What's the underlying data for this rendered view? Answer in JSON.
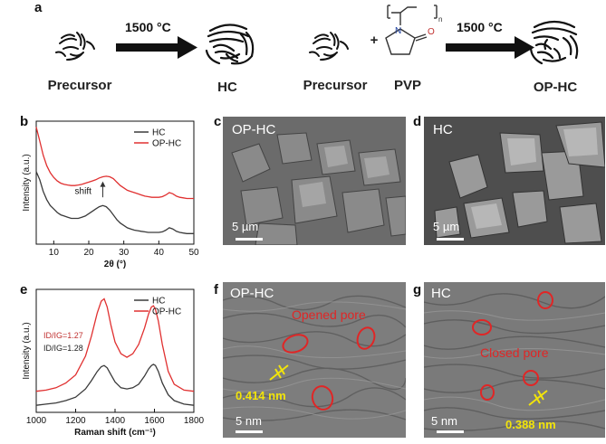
{
  "panels": {
    "a": "a",
    "b": "b",
    "c": "c",
    "d": "d",
    "e": "e",
    "f": "f",
    "g": "g"
  },
  "scheme": {
    "temp_left": "1500 °C",
    "temp_right": "1500 °C",
    "precursor_left": "Precursor",
    "hc": "HC",
    "precursor_right": "Precursor",
    "plus": "+",
    "pvp": "PVP",
    "ophc": "OP-HC",
    "pvp_n": "N",
    "pvp_o": "O",
    "pvp_sub": "n"
  },
  "sem": {
    "c_label": "OP-HC",
    "d_label": "HC",
    "c_scale": "5 µm",
    "d_scale": "5 µm"
  },
  "tem": {
    "f_label": "OP-HC",
    "g_label": "HC",
    "f_annot": "Opened pore",
    "g_annot": "Closed pore",
    "f_dist": "0.414 nm",
    "g_dist": "0.388 nm",
    "f_scale": "5 nm",
    "g_scale": "5 nm"
  },
  "colors": {
    "hc": "#3a3a3a",
    "ophc": "#e03030",
    "pore_red": "#e02626",
    "measure_yellow": "#f2e40a"
  },
  "chart_data": [
    {
      "id": "b",
      "type": "line",
      "xlabel": "2θ (°)",
      "ylabel": "Intensity (a.u.)",
      "xlim": [
        5,
        50
      ],
      "xticks": [
        10,
        20,
        30,
        40,
        50
      ],
      "yticks": [],
      "legend": "top-right",
      "annotation": "shift",
      "series": [
        {
          "name": "HC",
          "color": "#3a3a3a",
          "x": [
            5,
            6,
            7,
            8,
            9,
            10,
            11,
            12,
            13,
            14,
            15,
            16,
            17,
            18,
            19,
            20,
            21,
            22,
            23,
            24,
            25,
            26,
            27,
            28,
            29,
            30,
            31,
            32,
            33,
            34,
            35,
            36,
            37,
            38,
            39,
            40,
            41,
            42,
            43,
            44,
            45,
            46,
            47,
            48,
            49,
            50
          ],
          "y": [
            0.62,
            0.55,
            0.45,
            0.38,
            0.33,
            0.3,
            0.27,
            0.25,
            0.24,
            0.23,
            0.22,
            0.22,
            0.22,
            0.23,
            0.24,
            0.26,
            0.28,
            0.3,
            0.32,
            0.33,
            0.32,
            0.29,
            0.25,
            0.21,
            0.18,
            0.16,
            0.14,
            0.13,
            0.12,
            0.115,
            0.11,
            0.105,
            0.1,
            0.1,
            0.1,
            0.1,
            0.105,
            0.12,
            0.14,
            0.13,
            0.11,
            0.1,
            0.095,
            0.09,
            0.09,
            0.09
          ]
        },
        {
          "name": "OP-HC",
          "color": "#e03030",
          "x": [
            5,
            6,
            7,
            8,
            9,
            10,
            11,
            12,
            13,
            14,
            15,
            16,
            17,
            18,
            19,
            20,
            21,
            22,
            23,
            24,
            25,
            26,
            27,
            28,
            29,
            30,
            31,
            32,
            33,
            34,
            35,
            36,
            37,
            38,
            39,
            40,
            41,
            42,
            43,
            44,
            45,
            46,
            47,
            48,
            49,
            50
          ],
          "y": [
            1.0,
            0.88,
            0.76,
            0.67,
            0.61,
            0.57,
            0.54,
            0.52,
            0.51,
            0.505,
            0.5,
            0.5,
            0.505,
            0.51,
            0.52,
            0.53,
            0.54,
            0.55,
            0.565,
            0.575,
            0.58,
            0.575,
            0.56,
            0.53,
            0.5,
            0.48,
            0.46,
            0.45,
            0.44,
            0.43,
            0.42,
            0.41,
            0.405,
            0.4,
            0.4,
            0.4,
            0.405,
            0.42,
            0.44,
            0.43,
            0.41,
            0.4,
            0.395,
            0.39,
            0.39,
            0.39
          ]
        }
      ]
    },
    {
      "id": "e",
      "type": "line",
      "xlabel": "Raman shift (cm⁻¹)",
      "ylabel": "Intensity (a.u.)",
      "xlim": [
        1000,
        1800
      ],
      "xticks": [
        1000,
        1200,
        1400,
        1600,
        1800
      ],
      "yticks": [],
      "legend": "top-right",
      "annotations": [
        {
          "text": "ID/IG=1.27",
          "color": "#c0302f"
        },
        {
          "text": "ID/IG=1.28",
          "color": "#222222"
        }
      ],
      "series": [
        {
          "name": "HC",
          "color": "#3a3a3a",
          "x": [
            1000,
            1050,
            1100,
            1150,
            1200,
            1250,
            1280,
            1310,
            1330,
            1345,
            1360,
            1380,
            1400,
            1430,
            1460,
            1490,
            1520,
            1550,
            1570,
            1585,
            1595,
            1605,
            1620,
            1640,
            1670,
            1700,
            1750,
            1800
          ],
          "y": [
            0.06,
            0.07,
            0.08,
            0.1,
            0.13,
            0.2,
            0.27,
            0.35,
            0.39,
            0.4,
            0.38,
            0.32,
            0.26,
            0.21,
            0.2,
            0.21,
            0.24,
            0.31,
            0.37,
            0.4,
            0.41,
            0.4,
            0.35,
            0.25,
            0.15,
            0.1,
            0.07,
            0.06
          ]
        },
        {
          "name": "OP-HC",
          "color": "#e03030",
          "x": [
            1000,
            1050,
            1100,
            1150,
            1200,
            1250,
            1280,
            1310,
            1330,
            1345,
            1360,
            1380,
            1400,
            1430,
            1460,
            1490,
            1520,
            1550,
            1570,
            1585,
            1595,
            1605,
            1620,
            1640,
            1670,
            1700,
            1750,
            1800
          ],
          "y": [
            0.18,
            0.19,
            0.21,
            0.25,
            0.32,
            0.48,
            0.65,
            0.85,
            0.95,
            0.97,
            0.9,
            0.74,
            0.6,
            0.5,
            0.47,
            0.5,
            0.58,
            0.72,
            0.84,
            0.9,
            0.91,
            0.88,
            0.78,
            0.58,
            0.35,
            0.24,
            0.19,
            0.18
          ]
        }
      ]
    }
  ]
}
